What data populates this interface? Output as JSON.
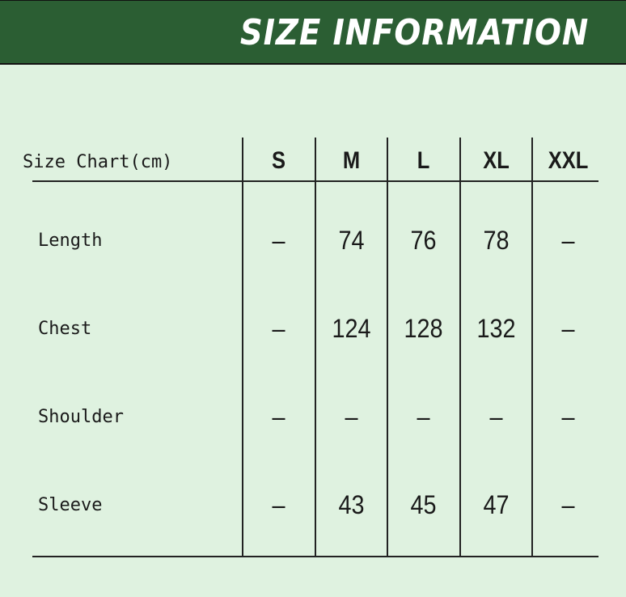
{
  "header": {
    "title": "SIZE INFORMATION",
    "background_color": "#2b5e33"
  },
  "table": {
    "corner_label": "Size Chart(cm)",
    "sizes": [
      "S",
      "M",
      "L",
      "XL",
      "XXL"
    ],
    "rows": [
      {
        "label": "Length",
        "values": [
          "–",
          "74",
          "76",
          "78",
          "–"
        ]
      },
      {
        "label": "Chest",
        "values": [
          "–",
          "124",
          "128",
          "132",
          "–"
        ]
      },
      {
        "label": "Shoulder",
        "values": [
          "–",
          "–",
          "–",
          "–",
          "–"
        ]
      },
      {
        "label": "Sleeve",
        "values": [
          "–",
          "43",
          "45",
          "47",
          "–"
        ]
      }
    ]
  }
}
